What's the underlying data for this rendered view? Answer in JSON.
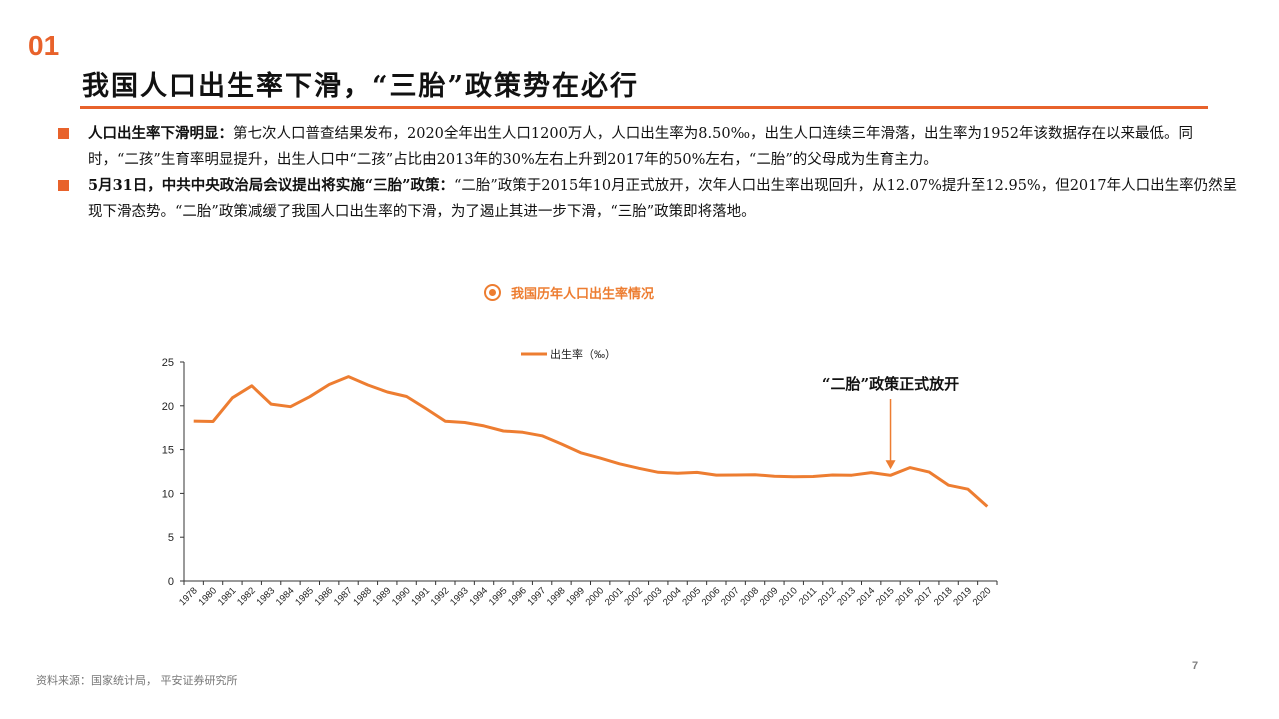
{
  "section": {
    "number": "01"
  },
  "title": "我国人口出生率下滑，“三胎”政策势在必行",
  "bullets": [
    {
      "bold": "人口出生率下滑明显：",
      "text": "第七次人口普查结果发布，2020全年出生人口1200万人，人口出生率为8.50‰，出生人口连续三年滑落，出生率为1952年该数据存在以来最低。同时，“二孩”生育率明显提升，出生人口中“二孩”占比由2013年的30%左右上升到2017年的50%左右，“二胎”的父母成为生育主力。"
    },
    {
      "bold": "5月31日，中共中央政治局会议提出将实施“三胎”政策：",
      "text": "“二胎”政策于2015年10月正式放开，次年人口出生率出现回升，从12.07%提升至12.95%，但2017年人口出生率仍然呈现下滑态势。“二胎”政策减缓了我国人口出生率的下滑，为了遏止其进一步下滑，“三胎”政策即将落地。"
    }
  ],
  "chart_heading": "我国历年人口出生率情况",
  "colors": {
    "accent": "#e8622b",
    "line": "#ed7d31",
    "axis": "#333333"
  },
  "chart_data": {
    "type": "line",
    "title": "我国历年人口出生率情况",
    "xlabel": "",
    "ylabel": "",
    "ylim": [
      0,
      25
    ],
    "yticks": [
      0,
      5,
      10,
      15,
      20,
      25
    ],
    "grid": false,
    "legend_position": "top",
    "categories": [
      "1978",
      "1980",
      "1981",
      "1982",
      "1983",
      "1984",
      "1985",
      "1986",
      "1987",
      "1988",
      "1989",
      "1990",
      "1991",
      "1992",
      "1993",
      "1994",
      "1995",
      "1996",
      "1997",
      "1998",
      "1999",
      "2000",
      "2001",
      "2002",
      "2003",
      "2004",
      "2005",
      "2006",
      "2007",
      "2008",
      "2009",
      "2010",
      "2011",
      "2012",
      "2013",
      "2014",
      "2015",
      "2016",
      "2017",
      "2018",
      "2019",
      "2020"
    ],
    "series": [
      {
        "name": "出生率（‰）",
        "values": [
          18.25,
          18.21,
          20.91,
          22.28,
          20.19,
          19.9,
          21.04,
          22.43,
          23.33,
          22.37,
          21.58,
          21.06,
          19.68,
          18.24,
          18.09,
          17.7,
          17.12,
          16.98,
          16.57,
          15.64,
          14.64,
          14.03,
          13.38,
          12.86,
          12.41,
          12.29,
          12.4,
          12.09,
          12.1,
          12.14,
          11.95,
          11.9,
          11.93,
          12.1,
          12.08,
          12.37,
          12.07,
          12.95,
          12.43,
          10.94,
          10.48,
          8.5
        ]
      }
    ],
    "annotations": [
      {
        "text": "“二胎”政策正式放开",
        "x": "2015",
        "type": "arrow-down"
      }
    ]
  },
  "footer": {
    "source": "资料来源：国家统计局， 平安证券研究所",
    "page": "7"
  }
}
